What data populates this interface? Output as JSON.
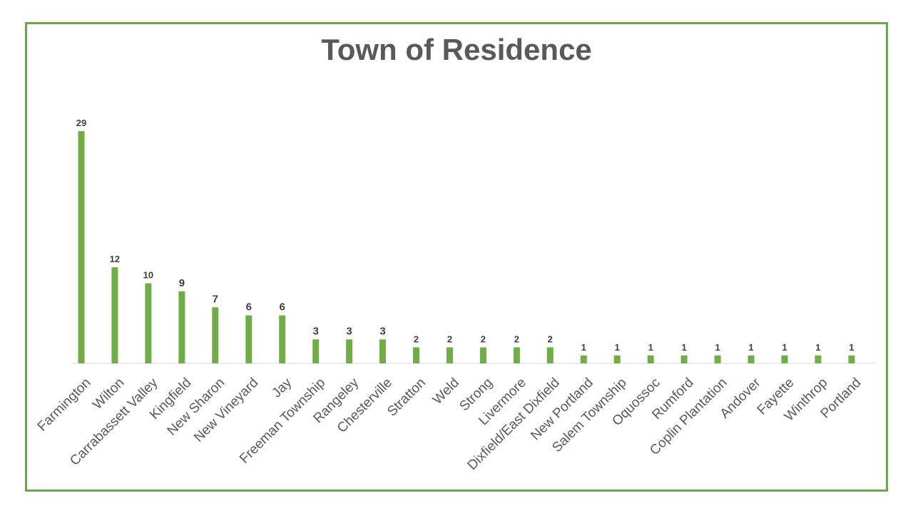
{
  "chart_data": {
    "type": "bar",
    "title": "Town of Residence",
    "xlabel": "",
    "ylabel": "",
    "ylim": [
      0,
      30
    ],
    "grid": false,
    "legend": "none",
    "colors": {
      "bar": "#70ad47",
      "border": "#6aa84f",
      "title": "#595959"
    },
    "categories": [
      "Farmington",
      "Wilton",
      "Carrabassett Valley",
      "Kingfield",
      "New Sharon",
      "New Vineyard",
      "Jay",
      "Freeman Township",
      "Rangeley",
      "Chesterville",
      "Stratton",
      "Weld",
      "Strong",
      "Livermore",
      "Dixfield/East Dixfield",
      "New Portland",
      "Salem Township",
      "Oquossoc",
      "Rumford",
      "Coplin Plantation",
      "Andover",
      "Fayette",
      "Winthrop",
      "Portland"
    ],
    "values": [
      29,
      12,
      10,
      9,
      7,
      6,
      6,
      3,
      3,
      3,
      2,
      2,
      2,
      2,
      2,
      1,
      1,
      1,
      1,
      1,
      1,
      1,
      1,
      1
    ]
  }
}
